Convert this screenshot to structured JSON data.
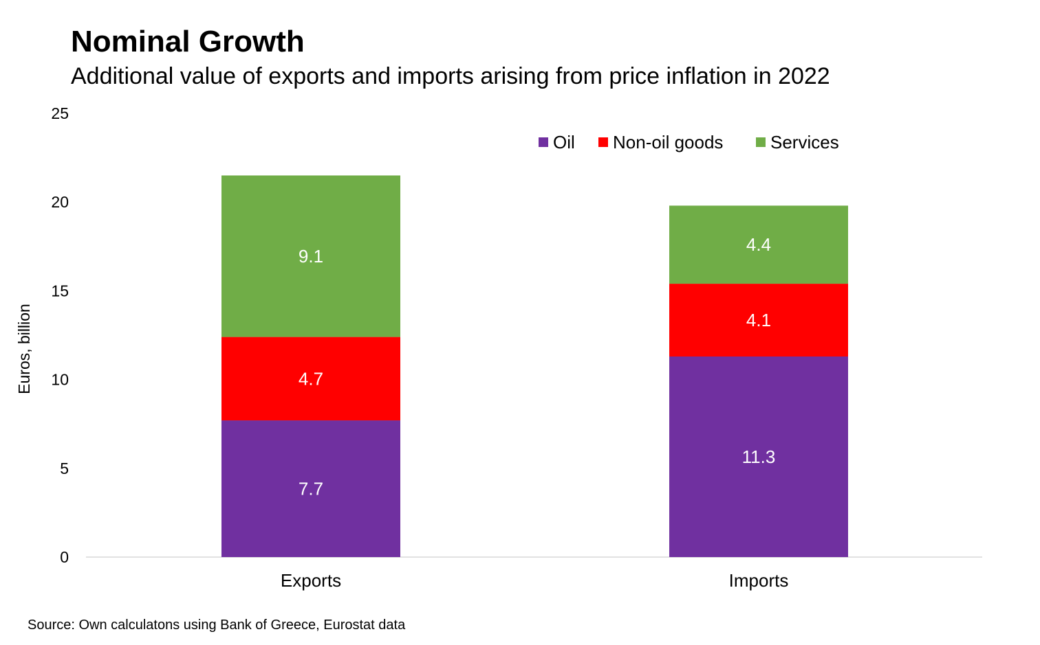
{
  "chart_data": {
    "type": "bar",
    "stacked": true,
    "title": "Nominal Growth",
    "subtitle": "Additional value of exports and imports arising from price inflation in 2022",
    "ylabel": "Euros, billion",
    "xlabel": "",
    "ylim": [
      0,
      25
    ],
    "yticks": [
      "0",
      "5",
      "10",
      "15",
      "20",
      "25"
    ],
    "categories": [
      "Exports",
      "Imports"
    ],
    "series": [
      {
        "name": "Oil",
        "color": "#7030a0",
        "values": [
          7.7,
          11.3
        ],
        "labels": [
          "7.7",
          "11.3"
        ]
      },
      {
        "name": "Non-oil goods",
        "color": "#ff0000",
        "values": [
          4.7,
          4.1
        ],
        "labels": [
          "4.7",
          "4.1"
        ]
      },
      {
        "name": "Services",
        "color": "#70ad47",
        "values": [
          9.1,
          4.4
        ],
        "labels": [
          "9.1",
          "4.4"
        ]
      }
    ],
    "legend_position": "top-right",
    "grid": false,
    "source": "Source: Own calculatons using Bank of Greece, Eurostat data"
  }
}
